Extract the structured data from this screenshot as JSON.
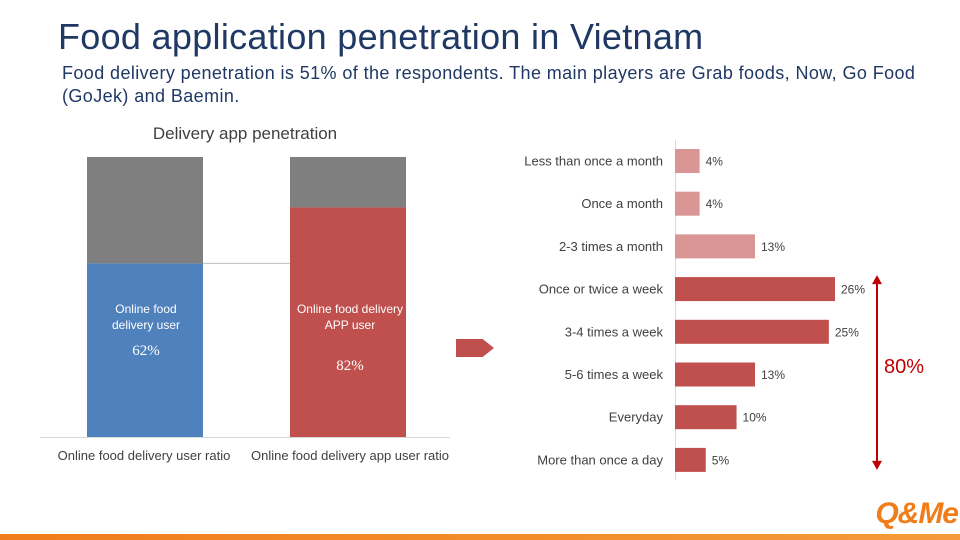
{
  "page": {
    "title": "Food application penetration in Vietnam",
    "subtitle": "Food delivery penetration is 51% of the respondents. The main players are Grab foods, Now, Go Food (GoJek) and Baemin.",
    "logo_text": "Q&Me"
  },
  "colors": {
    "title": "#1f3864",
    "blue_bar": "#4f81bd",
    "red_bar": "#c0504d",
    "gray_bar": "#7f7f7f",
    "light_red": "#d99694",
    "accent_red": "#c00000",
    "brand_orange": "#f07d1a"
  },
  "chart_data": [
    {
      "type": "bar",
      "stacked": true,
      "title": "Delivery app penetration",
      "categories": [
        "Online food delivery user ratio",
        "Online food delivery app user ratio"
      ],
      "series": [
        {
          "name": "",
          "values": [
            62,
            82
          ],
          "labels": [
            "Online food delivery user",
            "Online food delivery APP user"
          ],
          "value_labels": [
            "62%",
            "82%"
          ]
        },
        {
          "name": "",
          "values": [
            38,
            18
          ]
        }
      ],
      "ylim": [
        0,
        100
      ],
      "legend": "none",
      "grid": false
    },
    {
      "type": "bar",
      "orientation": "horizontal",
      "title": "",
      "categories": [
        "Less than once a month",
        "Once a month",
        "2-3 times a month",
        "Once or twice a week",
        "3-4 times a week",
        "5-6 times a week",
        "Everyday",
        "More than once a day"
      ],
      "values": [
        4,
        4,
        13,
        26,
        25,
        13,
        10,
        5
      ],
      "value_labels": [
        "4%",
        "4%",
        "13%",
        "26%",
        "25%",
        "13%",
        "10%",
        "5%"
      ],
      "xlim": [
        0,
        26
      ],
      "grid": false,
      "bracket": {
        "label": "80%",
        "from": "Once or twice a week",
        "to": "More than once a day"
      }
    }
  ]
}
